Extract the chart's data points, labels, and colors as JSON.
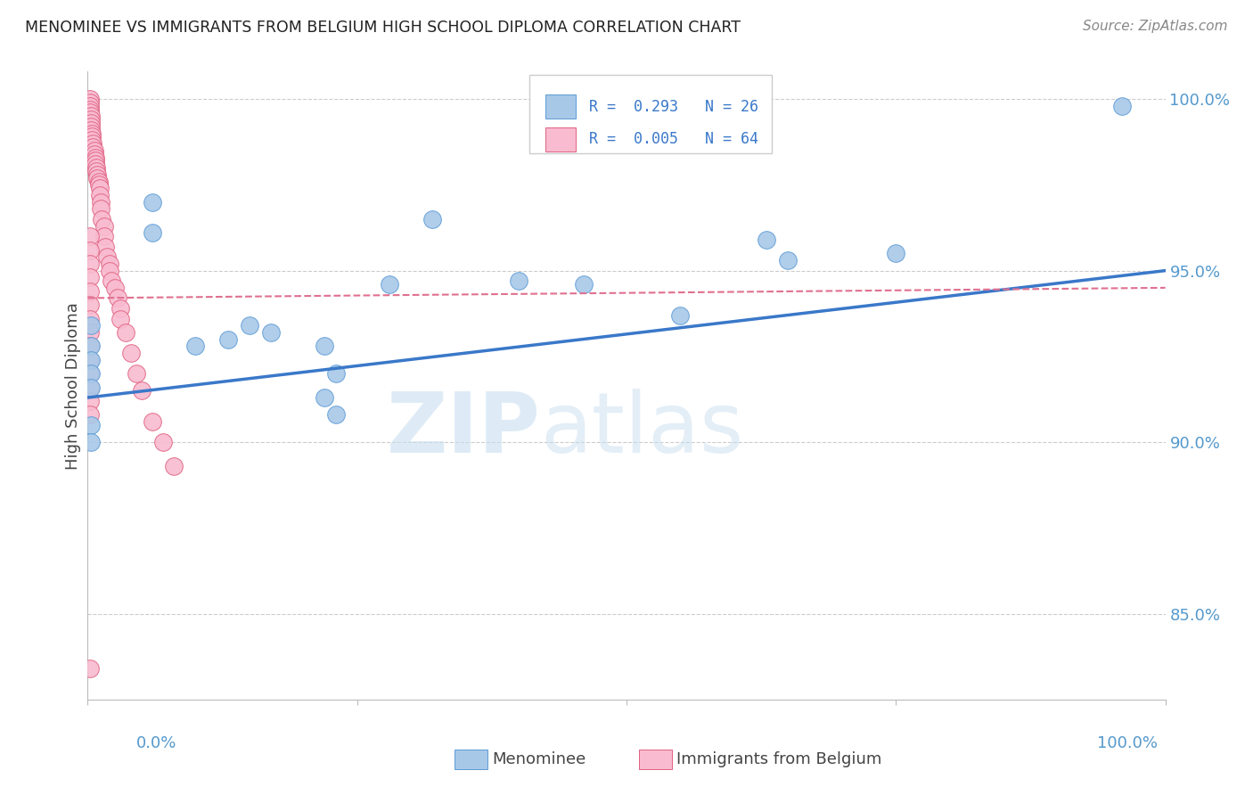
{
  "title": "MENOMINEE VS IMMIGRANTS FROM BELGIUM HIGH SCHOOL DIPLOMA CORRELATION CHART",
  "source": "Source: ZipAtlas.com",
  "ylabel": "High School Diploma",
  "ylabel_right_labels": [
    "85.0%",
    "90.0%",
    "95.0%",
    "100.0%"
  ],
  "ylabel_right_values": [
    0.85,
    0.9,
    0.95,
    1.0
  ],
  "legend_blue_r": "R =  0.293",
  "legend_blue_n": "N = 26",
  "legend_pink_r": "R =  0.005",
  "legend_pink_n": "N = 64",
  "blue_scatter_x": [
    0.003,
    0.003,
    0.003,
    0.003,
    0.003,
    0.06,
    0.06,
    0.1,
    0.13,
    0.15,
    0.17,
    0.22,
    0.23,
    0.22,
    0.23,
    0.32,
    0.28,
    0.003,
    0.003,
    0.4,
    0.46,
    0.55,
    0.63,
    0.65,
    0.75,
    0.96
  ],
  "blue_scatter_y": [
    0.934,
    0.928,
    0.924,
    0.92,
    0.916,
    0.97,
    0.961,
    0.928,
    0.93,
    0.934,
    0.932,
    0.928,
    0.92,
    0.913,
    0.908,
    0.965,
    0.946,
    0.905,
    0.9,
    0.947,
    0.946,
    0.937,
    0.959,
    0.953,
    0.955,
    0.998
  ],
  "pink_scatter_x": [
    0.002,
    0.002,
    0.002,
    0.002,
    0.002,
    0.003,
    0.003,
    0.003,
    0.003,
    0.003,
    0.004,
    0.004,
    0.004,
    0.005,
    0.005,
    0.006,
    0.006,
    0.007,
    0.007,
    0.007,
    0.008,
    0.008,
    0.009,
    0.009,
    0.01,
    0.01,
    0.011,
    0.011,
    0.012,
    0.012,
    0.013,
    0.015,
    0.015,
    0.016,
    0.018,
    0.02,
    0.02,
    0.022,
    0.025,
    0.028,
    0.03,
    0.03,
    0.035,
    0.04,
    0.045,
    0.05,
    0.06,
    0.07,
    0.08,
    0.002,
    0.002,
    0.002,
    0.002,
    0.002,
    0.002,
    0.002,
    0.002,
    0.002,
    0.002,
    0.002,
    0.002,
    0.002,
    0.002,
    0.002
  ],
  "pink_scatter_y": [
    1.0,
    0.999,
    0.998,
    0.997,
    0.996,
    0.995,
    0.994,
    0.993,
    0.992,
    0.991,
    0.99,
    0.989,
    0.988,
    0.987,
    0.986,
    0.985,
    0.984,
    0.983,
    0.982,
    0.981,
    0.98,
    0.979,
    0.978,
    0.977,
    0.976,
    0.975,
    0.974,
    0.972,
    0.97,
    0.968,
    0.965,
    0.963,
    0.96,
    0.957,
    0.954,
    0.952,
    0.95,
    0.947,
    0.945,
    0.942,
    0.939,
    0.936,
    0.932,
    0.926,
    0.92,
    0.915,
    0.906,
    0.9,
    0.893,
    0.96,
    0.956,
    0.952,
    0.948,
    0.944,
    0.94,
    0.936,
    0.932,
    0.928,
    0.924,
    0.92,
    0.916,
    0.912,
    0.908,
    0.834
  ],
  "blue_line_x": [
    0.0,
    1.0
  ],
  "blue_line_y": [
    0.913,
    0.95
  ],
  "pink_line_x": [
    0.0,
    1.0
  ],
  "pink_line_y": [
    0.942,
    0.945
  ],
  "background_color": "#ffffff",
  "blue_color": "#a8c8e8",
  "pink_color": "#f8bbd0",
  "blue_edge_color": "#5b9bd5",
  "pink_edge_color": "#e06080",
  "blue_line_color": "#3a78c9",
  "pink_line_color": "#e07090",
  "xlim": [
    0.0,
    1.0
  ],
  "ylim": [
    0.825,
    1.008
  ]
}
